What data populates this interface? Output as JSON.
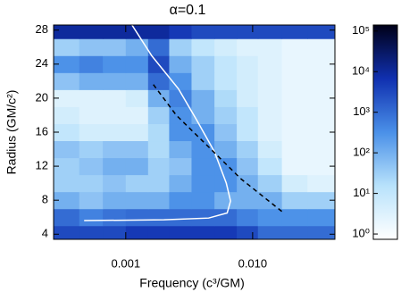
{
  "chart_data": {
    "type": "heatmap",
    "title": "α=0.1",
    "x_label": "Frequency (c³/GM)",
    "y_label": "Radius (GM/c²)",
    "xlog": true,
    "xlim": [
      0.00027,
      0.0445
    ],
    "ylim": [
      3.4,
      28.6
    ],
    "xticks": [
      0.001,
      {
        "value": 0.01,
        "label": "0.010"
      }
    ],
    "yticks": [
      4,
      8,
      12,
      16,
      20,
      24,
      28
    ],
    "x_edges": [
      0.00027,
      0.00043,
      0.00066,
      0.001,
      0.0015,
      0.0022,
      0.0033,
      0.005,
      0.0075,
      0.011,
      0.017,
      0.027,
      0.0445
    ],
    "y_edges": [
      3.4,
      5,
      7,
      9,
      11,
      13,
      15,
      17,
      19,
      21,
      23,
      25,
      27,
      28.6
    ],
    "z": [
      [
        3000,
        3000,
        3000,
        5000,
        5000,
        5000,
        5000,
        5000,
        3000,
        1000,
        1000,
        1000
      ],
      [
        1000,
        500,
        800,
        1000,
        1000,
        1000,
        1000,
        1000,
        500,
        300,
        300,
        300
      ],
      [
        100,
        50,
        100,
        100,
        100,
        300,
        300,
        100,
        100,
        100,
        30,
        30
      ],
      [
        30,
        30,
        50,
        30,
        30,
        100,
        300,
        300,
        100,
        30,
        5,
        3
      ],
      [
        30,
        50,
        100,
        100,
        30,
        50,
        300,
        300,
        50,
        10,
        2,
        2
      ],
      [
        50,
        30,
        50,
        50,
        20,
        100,
        300,
        100,
        30,
        5,
        2,
        2
      ],
      [
        10,
        5,
        5,
        5,
        20,
        300,
        300,
        50,
        10,
        3,
        2,
        2
      ],
      [
        5,
        3,
        3,
        3,
        30,
        300,
        100,
        30,
        10,
        3,
        2,
        2
      ],
      [
        3,
        3,
        3,
        5,
        100,
        500,
        100,
        20,
        5,
        3,
        2,
        2
      ],
      [
        50,
        100,
        100,
        100,
        1000,
        300,
        30,
        10,
        5,
        3,
        2,
        2
      ],
      [
        300,
        500,
        300,
        300,
        3000,
        100,
        30,
        10,
        5,
        3,
        2,
        2
      ],
      [
        30,
        50,
        50,
        100,
        1000,
        30,
        10,
        5,
        3,
        3,
        2,
        2
      ],
      [
        10000,
        10000,
        10000,
        10000,
        10000,
        5000,
        3000,
        3000,
        3000,
        3000,
        3000,
        3000
      ]
    ],
    "colormap": [
      "#ffffff",
      "#b8e2fb",
      "#4a90e8",
      "#1030b0",
      "#000018"
    ],
    "colorbar": {
      "log": true,
      "lim": [
        0.74,
        141000
      ],
      "ticks": [
        {
          "value": 1,
          "label": "10⁰"
        },
        {
          "value": 10,
          "label": "10¹"
        },
        {
          "value": 100,
          "label": "10²"
        },
        {
          "value": 1000,
          "label": "10³"
        },
        {
          "value": 10000,
          "label": "10⁴"
        },
        {
          "value": 100000,
          "label": "10⁵"
        }
      ]
    },
    "series": [
      {
        "color": "#ffffff",
        "dashed": false,
        "x": [
          0.00112,
          0.0016,
          0.0026,
          0.0036,
          0.005,
          0.0062,
          0.0067,
          0.0063,
          0.0045,
          0.002,
          0.00047
        ],
        "values": [
          28.6,
          25,
          21.1,
          17.5,
          13.7,
          10,
          7.9,
          6.5,
          5.9,
          5.7,
          5.6
        ]
      },
      {
        "color": "#000000",
        "dashed": true,
        "x": [
          0.00165,
          0.0025,
          0.0042,
          0.0081,
          0.0176
        ],
        "values": [
          21.6,
          18,
          14.7,
          10.5,
          6.5
        ]
      }
    ]
  }
}
